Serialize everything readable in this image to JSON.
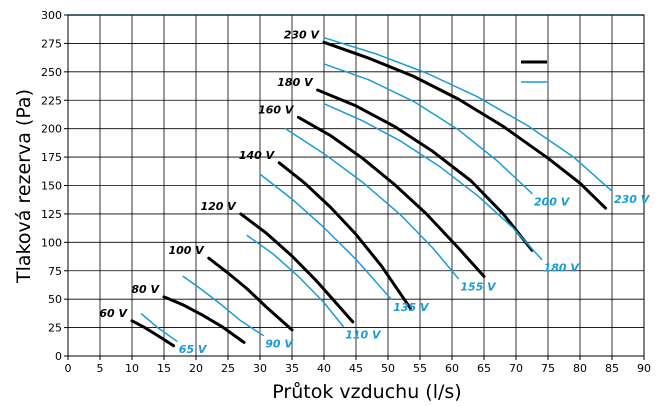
{
  "chart_data": {
    "type": "line",
    "xlabel": "Průtok vzduchu (l/s)",
    "ylabel": "Tlaková rezerva (Pa)",
    "xlim": [
      0,
      90
    ],
    "ylim": [
      0,
      300
    ],
    "xticks": [
      0,
      5,
      10,
      15,
      20,
      25,
      30,
      35,
      40,
      45,
      50,
      55,
      60,
      65,
      70,
      75,
      80,
      85,
      90
    ],
    "yticks": [
      0,
      25,
      50,
      75,
      100,
      125,
      150,
      175,
      200,
      225,
      250,
      275,
      300
    ],
    "grid": true,
    "colors": {
      "black_series": "#000000",
      "blue_series": "#1a9bd7"
    },
    "series": [
      {
        "name": "60 V",
        "group": "black",
        "x": [
          10,
          12,
          14,
          16.5
        ],
        "y": [
          31,
          25,
          18,
          9
        ]
      },
      {
        "name": "80 V",
        "group": "black",
        "x": [
          15,
          18,
          21,
          24,
          27.5
        ],
        "y": [
          52,
          45,
          36,
          26,
          12
        ]
      },
      {
        "name": "100 V",
        "group": "black",
        "x": [
          22,
          25,
          28,
          31,
          35
        ],
        "y": [
          86,
          73,
          59,
          43,
          23
        ]
      },
      {
        "name": "120 V",
        "group": "black",
        "x": [
          27,
          31,
          35,
          39,
          44.5
        ],
        "y": [
          125,
          108,
          88,
          65,
          30
        ]
      },
      {
        "name": "140 V",
        "group": "black",
        "x": [
          33,
          37,
          41,
          45,
          49,
          53.5
        ],
        "y": [
          170,
          152,
          131,
          107,
          79,
          42
        ]
      },
      {
        "name": "160 V",
        "group": "black",
        "x": [
          36,
          41,
          46,
          51,
          56,
          61,
          65
        ],
        "y": [
          210,
          194,
          174,
          151,
          125,
          95,
          70
        ]
      },
      {
        "name": "180 V",
        "group": "black",
        "x": [
          39,
          45,
          51,
          57,
          63,
          68,
          72.5
        ],
        "y": [
          234,
          220,
          202,
          180,
          154,
          125,
          93
        ]
      },
      {
        "name": "230 V",
        "group": "black",
        "x": [
          40,
          47,
          54,
          61,
          68,
          75,
          80,
          84
        ],
        "y": [
          276,
          262,
          246,
          226,
          202,
          174,
          152,
          130
        ]
      },
      {
        "name": "65 V",
        "group": "blue",
        "x": [
          11.5,
          14,
          17
        ],
        "y": [
          37,
          25,
          13
        ]
      },
      {
        "name": "90 V",
        "group": "blue",
        "x": [
          18,
          21,
          24,
          27,
          30.5
        ],
        "y": [
          70,
          58,
          45,
          31,
          18
        ]
      },
      {
        "name": "110 V",
        "group": "blue",
        "x": [
          28,
          32,
          36,
          40,
          43
        ],
        "y": [
          106,
          90,
          70,
          47,
          26
        ]
      },
      {
        "name": "135 V",
        "group": "blue",
        "x": [
          30,
          35,
          40,
          45,
          50.5
        ],
        "y": [
          160,
          138,
          113,
          85,
          50
        ]
      },
      {
        "name": "155 V",
        "group": "blue",
        "x": [
          34,
          40,
          46,
          52,
          57,
          61
        ],
        "y": [
          200,
          178,
          153,
          124,
          95,
          68
        ]
      },
      {
        "name": "180 V",
        "group": "blue",
        "x": [
          40,
          46,
          52,
          58,
          64,
          69.5,
          74
        ],
        "y": [
          222,
          207,
          189,
          167,
          141,
          113,
          85
        ]
      },
      {
        "name": "200 V",
        "group": "blue",
        "x": [
          40,
          47,
          54,
          61,
          67,
          72.5
        ],
        "y": [
          257,
          243,
          224,
          199,
          172,
          143
        ]
      },
      {
        "name": "230 V",
        "group": "blue",
        "x": [
          40,
          48,
          56,
          64,
          72,
          79,
          85
        ],
        "y": [
          280,
          266,
          249,
          228,
          202,
          175,
          145
        ]
      }
    ]
  }
}
